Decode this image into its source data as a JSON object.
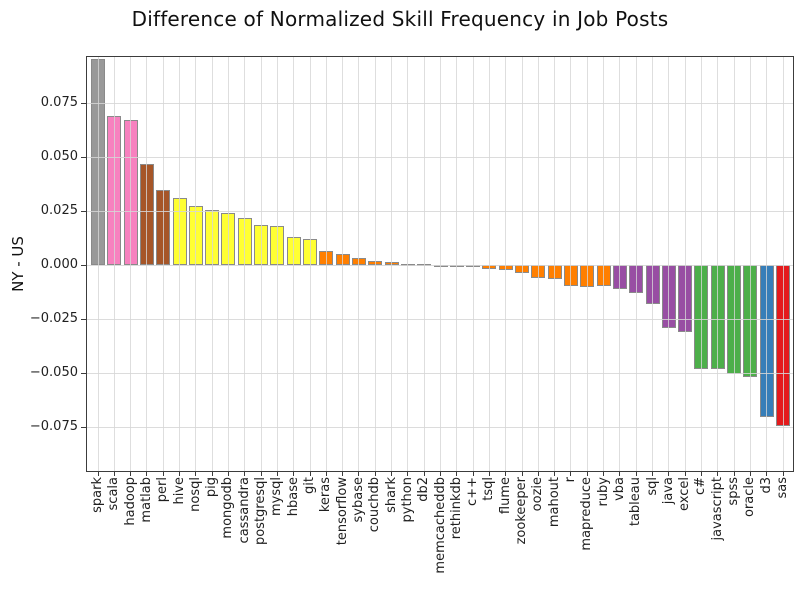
{
  "chart_data": {
    "type": "bar",
    "title": "Difference of Normalized Skill Frequency in Job Posts",
    "ylabel": "NY - US",
    "xlabel": "",
    "legend_position": "none",
    "grid": true,
    "grid_color": "#d6d6d6",
    "bar_edge_color": "#8a8a8a",
    "background_color": "#ffffff",
    "ylim": [
      -0.0958,
      0.0968
    ],
    "yticks": [
      {
        "label": "0.075",
        "value": 0.075
      },
      {
        "label": "0.050",
        "value": 0.05
      },
      {
        "label": "0.025",
        "value": 0.025
      },
      {
        "label": "0.000",
        "value": 0.0
      },
      {
        "label": "−0.025",
        "value": -0.025
      },
      {
        "label": "−0.050",
        "value": -0.05
      },
      {
        "label": "−0.075",
        "value": -0.075
      }
    ],
    "palette": {
      "gray": "#999999",
      "pink": "#f781bf",
      "brown": "#a65628",
      "yellow": "#ffff33",
      "orange": "#ff7f00",
      "purple": "#984ea3",
      "green": "#4daf4a",
      "blue": "#377eb8",
      "red": "#e41a1c"
    },
    "categories": [
      "spark",
      "scala",
      "hadoop",
      "matlab",
      "perl",
      "hive",
      "nosql",
      "pig",
      "mongodb",
      "cassandra",
      "postgresql",
      "mysql",
      "hbase",
      "git",
      "keras",
      "tensorflow",
      "sybase",
      "couchdb",
      "shark",
      "python",
      "db2",
      "memcacheddb",
      "rethinkdb",
      "c++",
      "tsql",
      "flume",
      "zookeeper",
      "oozie",
      "mahout",
      "r",
      "mapreduce",
      "ruby",
      "vba",
      "tableau",
      "sql",
      "java",
      "excel",
      "c#",
      "javascript",
      "spss",
      "oracle",
      "d3",
      "sas"
    ],
    "values": [
      0.0952,
      0.0688,
      0.0672,
      0.0468,
      0.0348,
      0.031,
      0.0273,
      0.0253,
      0.0239,
      0.0219,
      0.0184,
      0.0181,
      0.013,
      0.0123,
      0.0066,
      0.0051,
      0.0031,
      0.002,
      0.0015,
      0.0006,
      0.0004,
      0.0002,
      -0.0002,
      -0.0005,
      -0.002,
      -0.0025,
      -0.0036,
      -0.006,
      -0.0066,
      -0.0095,
      -0.0103,
      -0.0098,
      -0.0109,
      -0.0127,
      -0.0178,
      -0.029,
      -0.0311,
      -0.048,
      -0.0482,
      -0.0505,
      -0.052,
      -0.0705,
      -0.0745
    ],
    "bar_color_groups": [
      "gray",
      "pink",
      "pink",
      "brown",
      "brown",
      "yellow",
      "yellow",
      "yellow",
      "yellow",
      "yellow",
      "yellow",
      "yellow",
      "yellow",
      "yellow",
      "orange",
      "orange",
      "orange",
      "orange",
      "orange",
      "orange",
      "orange",
      "orange",
      "orange",
      "orange",
      "orange",
      "orange",
      "orange",
      "orange",
      "orange",
      "orange",
      "orange",
      "orange",
      "purple",
      "purple",
      "purple",
      "purple",
      "purple",
      "green",
      "green",
      "green",
      "green",
      "blue",
      "red"
    ]
  }
}
